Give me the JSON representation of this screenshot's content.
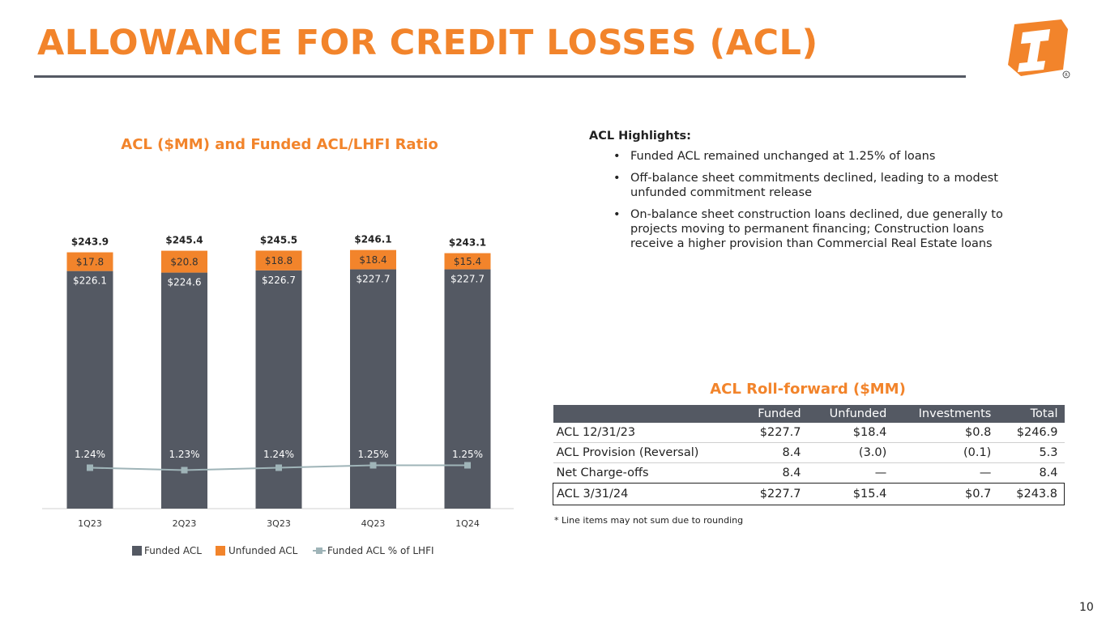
{
  "page_title": "ALLOWANCE FOR CREDIT LOSSES (ACL)",
  "page_number": "10",
  "colors": {
    "accent": "#F2842B",
    "funded": "#545963",
    "unfunded": "#F2842B",
    "ratio_line": "#9FB4B8"
  },
  "chart_data": {
    "type": "bar",
    "stacked": true,
    "title": "ACL ($MM) and Funded ACL/LHFI Ratio",
    "categories": [
      "1Q23",
      "2Q23",
      "3Q23",
      "4Q23",
      "1Q24"
    ],
    "series": [
      {
        "name": "Funded ACL",
        "values": [
          226.1,
          224.6,
          226.7,
          227.7,
          227.7
        ],
        "labels": [
          "$226.1",
          "$224.6",
          "$226.7",
          "$227.7",
          "$227.7"
        ]
      },
      {
        "name": "Unfunded ACL",
        "values": [
          17.8,
          20.8,
          18.8,
          18.4,
          15.4
        ],
        "labels": [
          "$17.8",
          "$20.8",
          "$18.8",
          "$18.4",
          "$15.4"
        ]
      }
    ],
    "totals": [
      243.9,
      245.4,
      245.5,
      246.1,
      243.1
    ],
    "total_labels": [
      "$243.9",
      "$245.4",
      "$245.5",
      "$246.1",
      "$243.1"
    ],
    "line_series": {
      "name": "Funded ACL % of LHFI",
      "values": [
        1.24,
        1.23,
        1.24,
        1.25,
        1.25
      ],
      "labels": [
        "1.24%",
        "1.23%",
        "1.24%",
        "1.25%",
        "1.25%"
      ]
    },
    "legend": [
      "Funded ACL",
      "Unfunded ACL",
      "Funded ACL % of LHFI"
    ],
    "legend_position": "bottom"
  },
  "highlights": {
    "heading": "ACL Highlights:",
    "items": [
      "Funded ACL remained unchanged at 1.25% of loans",
      "Off-balance sheet commitments declined, leading to a modest unfunded commitment release",
      "On-balance sheet construction loans declined, due generally to projects moving to permanent financing; Construction loans receive a higher provision than Commercial Real Estate loans"
    ]
  },
  "rollforward": {
    "title": "ACL Roll-forward ($MM)",
    "columns": [
      "",
      "Funded",
      "Unfunded",
      "Investments",
      "Total"
    ],
    "rows": [
      [
        "ACL  12/31/23",
        "$227.7",
        "$18.4",
        "$0.8",
        "$246.9"
      ],
      [
        "ACL Provision (Reversal)",
        "8.4",
        "(3.0)",
        "(0.1)",
        "5.3"
      ],
      [
        "Net Charge-offs",
        "8.4",
        "—",
        "—",
        "8.4"
      ],
      [
        "ACL  3/31/24",
        "$227.7",
        "$15.4",
        "$0.7",
        "$243.8"
      ]
    ],
    "footnote": "* Line items may not sum due to rounding"
  }
}
